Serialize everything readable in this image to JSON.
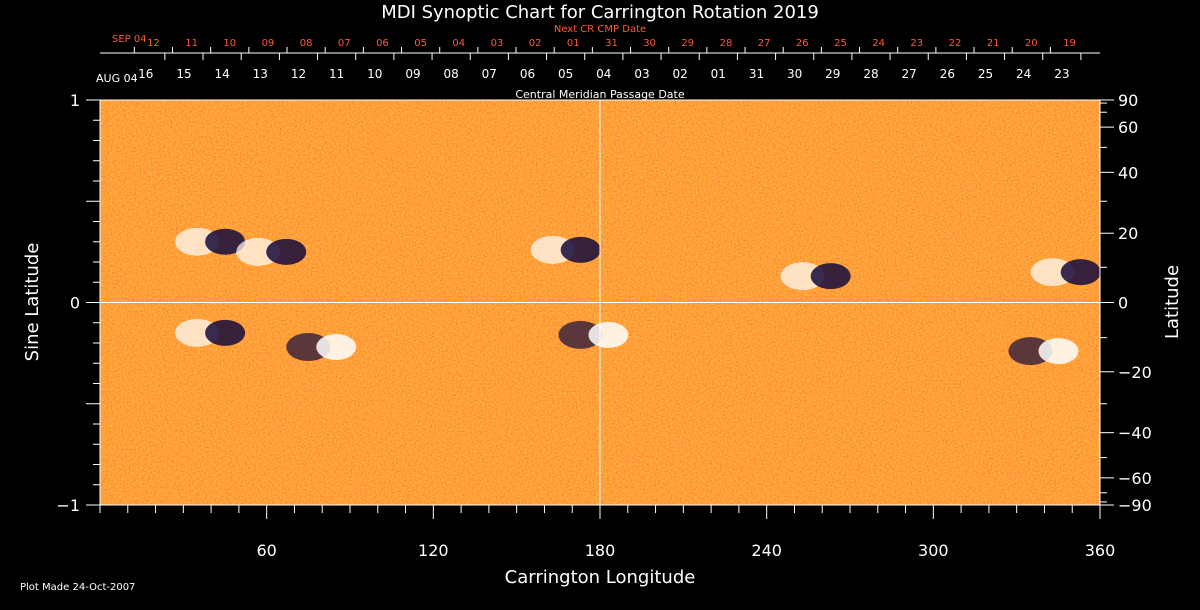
{
  "chart_data": {
    "type": "heatmap",
    "title": "MDI Synoptic Chart for Carrington Rotation 2019",
    "xlabel": "Carrington Longitude",
    "ylabel_left": "Sine Latitude",
    "ylabel_right": "Latitude",
    "xlim": [
      0,
      360
    ],
    "ylim": [
      -1,
      1
    ],
    "x_ticks": [
      60,
      120,
      180,
      240,
      300,
      360
    ],
    "x_tick_labels": [
      "60",
      "120",
      "180",
      "240",
      "300",
      "360"
    ],
    "y_left_ticks": [
      1,
      0,
      -1
    ],
    "y_left_tick_labels": [
      "1",
      "0",
      "−1"
    ],
    "y_right_ticks": [
      90,
      60,
      40,
      20,
      0,
      -20,
      -40,
      -60,
      -90
    ],
    "y_right_tick_labels": [
      "90",
      "60",
      "40",
      "20",
      "0",
      "−20",
      "−40",
      "−60",
      "−90"
    ],
    "gridlines": {
      "x": 180,
      "y": 0
    },
    "cmp_axis": {
      "label": "Central Meridian Passage Date",
      "month_label": "AUG 04",
      "dates": [
        "16",
        "15",
        "14",
        "13",
        "12",
        "11",
        "10",
        "09",
        "08",
        "07",
        "06",
        "05",
        "04",
        "03",
        "02",
        "01",
        "31",
        "30",
        "29",
        "28",
        "27",
        "26",
        "25",
        "24",
        "23"
      ]
    },
    "next_cmp_axis": {
      "label": "Next CR CMP Date",
      "month_label": "SEP 04",
      "dates": [
        "12",
        "11",
        "10",
        "09",
        "08",
        "07",
        "06",
        "05",
        "04",
        "03",
        "02",
        "01",
        "31",
        "30",
        "29",
        "28",
        "27",
        "26",
        "25",
        "24",
        "23",
        "22",
        "21",
        "20",
        "19"
      ]
    },
    "colors": {
      "background_field": "#ff5a1e",
      "positive_polarity": "#ffffff",
      "negative_polarity": "#140a3c",
      "next_cmp_text": "#ff5a32"
    },
    "active_regions": [
      {
        "lon": 40,
        "sinlat": 0.3,
        "polarity_lead": "negative"
      },
      {
        "lon": 62,
        "sinlat": 0.25,
        "polarity_lead": "negative"
      },
      {
        "lon": 168,
        "sinlat": 0.26,
        "polarity_lead": "negative"
      },
      {
        "lon": 258,
        "sinlat": 0.13,
        "polarity_lead": "negative"
      },
      {
        "lon": 348,
        "sinlat": 0.15,
        "polarity_lead": "negative"
      },
      {
        "lon": 40,
        "sinlat": -0.15,
        "polarity_lead": "negative"
      },
      {
        "lon": 80,
        "sinlat": -0.22,
        "polarity_lead": "positive"
      },
      {
        "lon": 178,
        "sinlat": -0.16,
        "polarity_lead": "positive"
      },
      {
        "lon": 340,
        "sinlat": -0.24,
        "polarity_lead": "positive"
      }
    ],
    "footer": "Plot Made 24-Oct-2007"
  }
}
